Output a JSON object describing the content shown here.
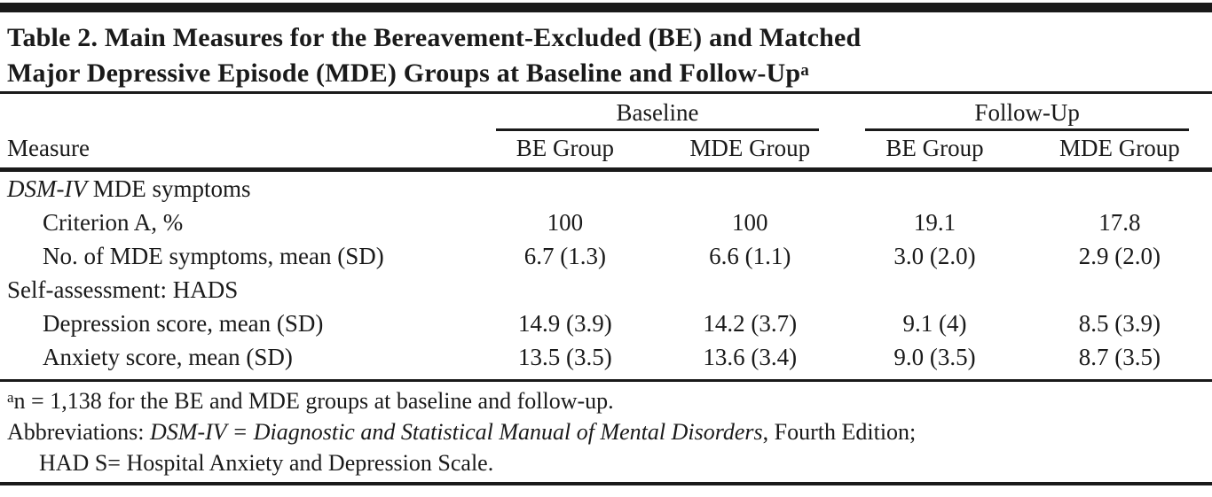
{
  "title": {
    "line1": "Table 2. Main Measures for the Bereavement-Excluded (BE) and Matched",
    "line2": "Major Depressive Episode (MDE) Groups at Baseline and Follow-Up",
    "footnote_marker": "a"
  },
  "table": {
    "measure_header": "Measure",
    "spanners": [
      "Baseline",
      "Follow-Up"
    ],
    "group_headers": [
      "BE Group",
      "MDE Group",
      "BE Group",
      "MDE Group"
    ],
    "rows": [
      {
        "label_italic": "DSM-IV",
        "label": " MDE symptoms",
        "values": [
          "",
          "",
          "",
          ""
        ]
      },
      {
        "label_italic": "",
        "label": "Criterion A, %",
        "values": [
          "100",
          "100",
          "19.1",
          "17.8"
        ]
      },
      {
        "label_italic": "",
        "label": "No. of MDE symptoms, mean (SD)",
        "values": [
          "6.7 (1.3)",
          "6.6 (1.1)",
          "3.0 (2.0)",
          "2.9 (2.0)"
        ]
      },
      {
        "label_italic": "",
        "label": "Self-assessment: HADS",
        "values": [
          "",
          "",
          "",
          ""
        ]
      },
      {
        "label_italic": "",
        "label": "Depression score, mean (SD)",
        "values": [
          "14.9 (3.9)",
          "14.2 (3.7)",
          "9.1 (4)",
          "8.5 (3.9)"
        ]
      },
      {
        "label_italic": "",
        "label": "Anxiety score, mean (SD)",
        "values": [
          "13.5 (3.5)",
          "13.6 (3.4)",
          "9.0 (3.5)",
          "8.7 (3.5)"
        ]
      }
    ]
  },
  "footnotes": {
    "marker": "a",
    "line1": "n = 1,138 for the BE and MDE groups at baseline and follow-up.",
    "line2_prefix": "Abbreviations: ",
    "line2_italic": "DSM-IV = Diagnostic and Statistical Manual of Mental Disorders",
    "line2_suffix": ", Fourth Edition;",
    "line3": "HAD S= Hospital Anxiety and Depression Scale."
  },
  "colors": {
    "text": "#1a1a1a",
    "rule": "#1a1a1a",
    "background": "#ffffff"
  }
}
